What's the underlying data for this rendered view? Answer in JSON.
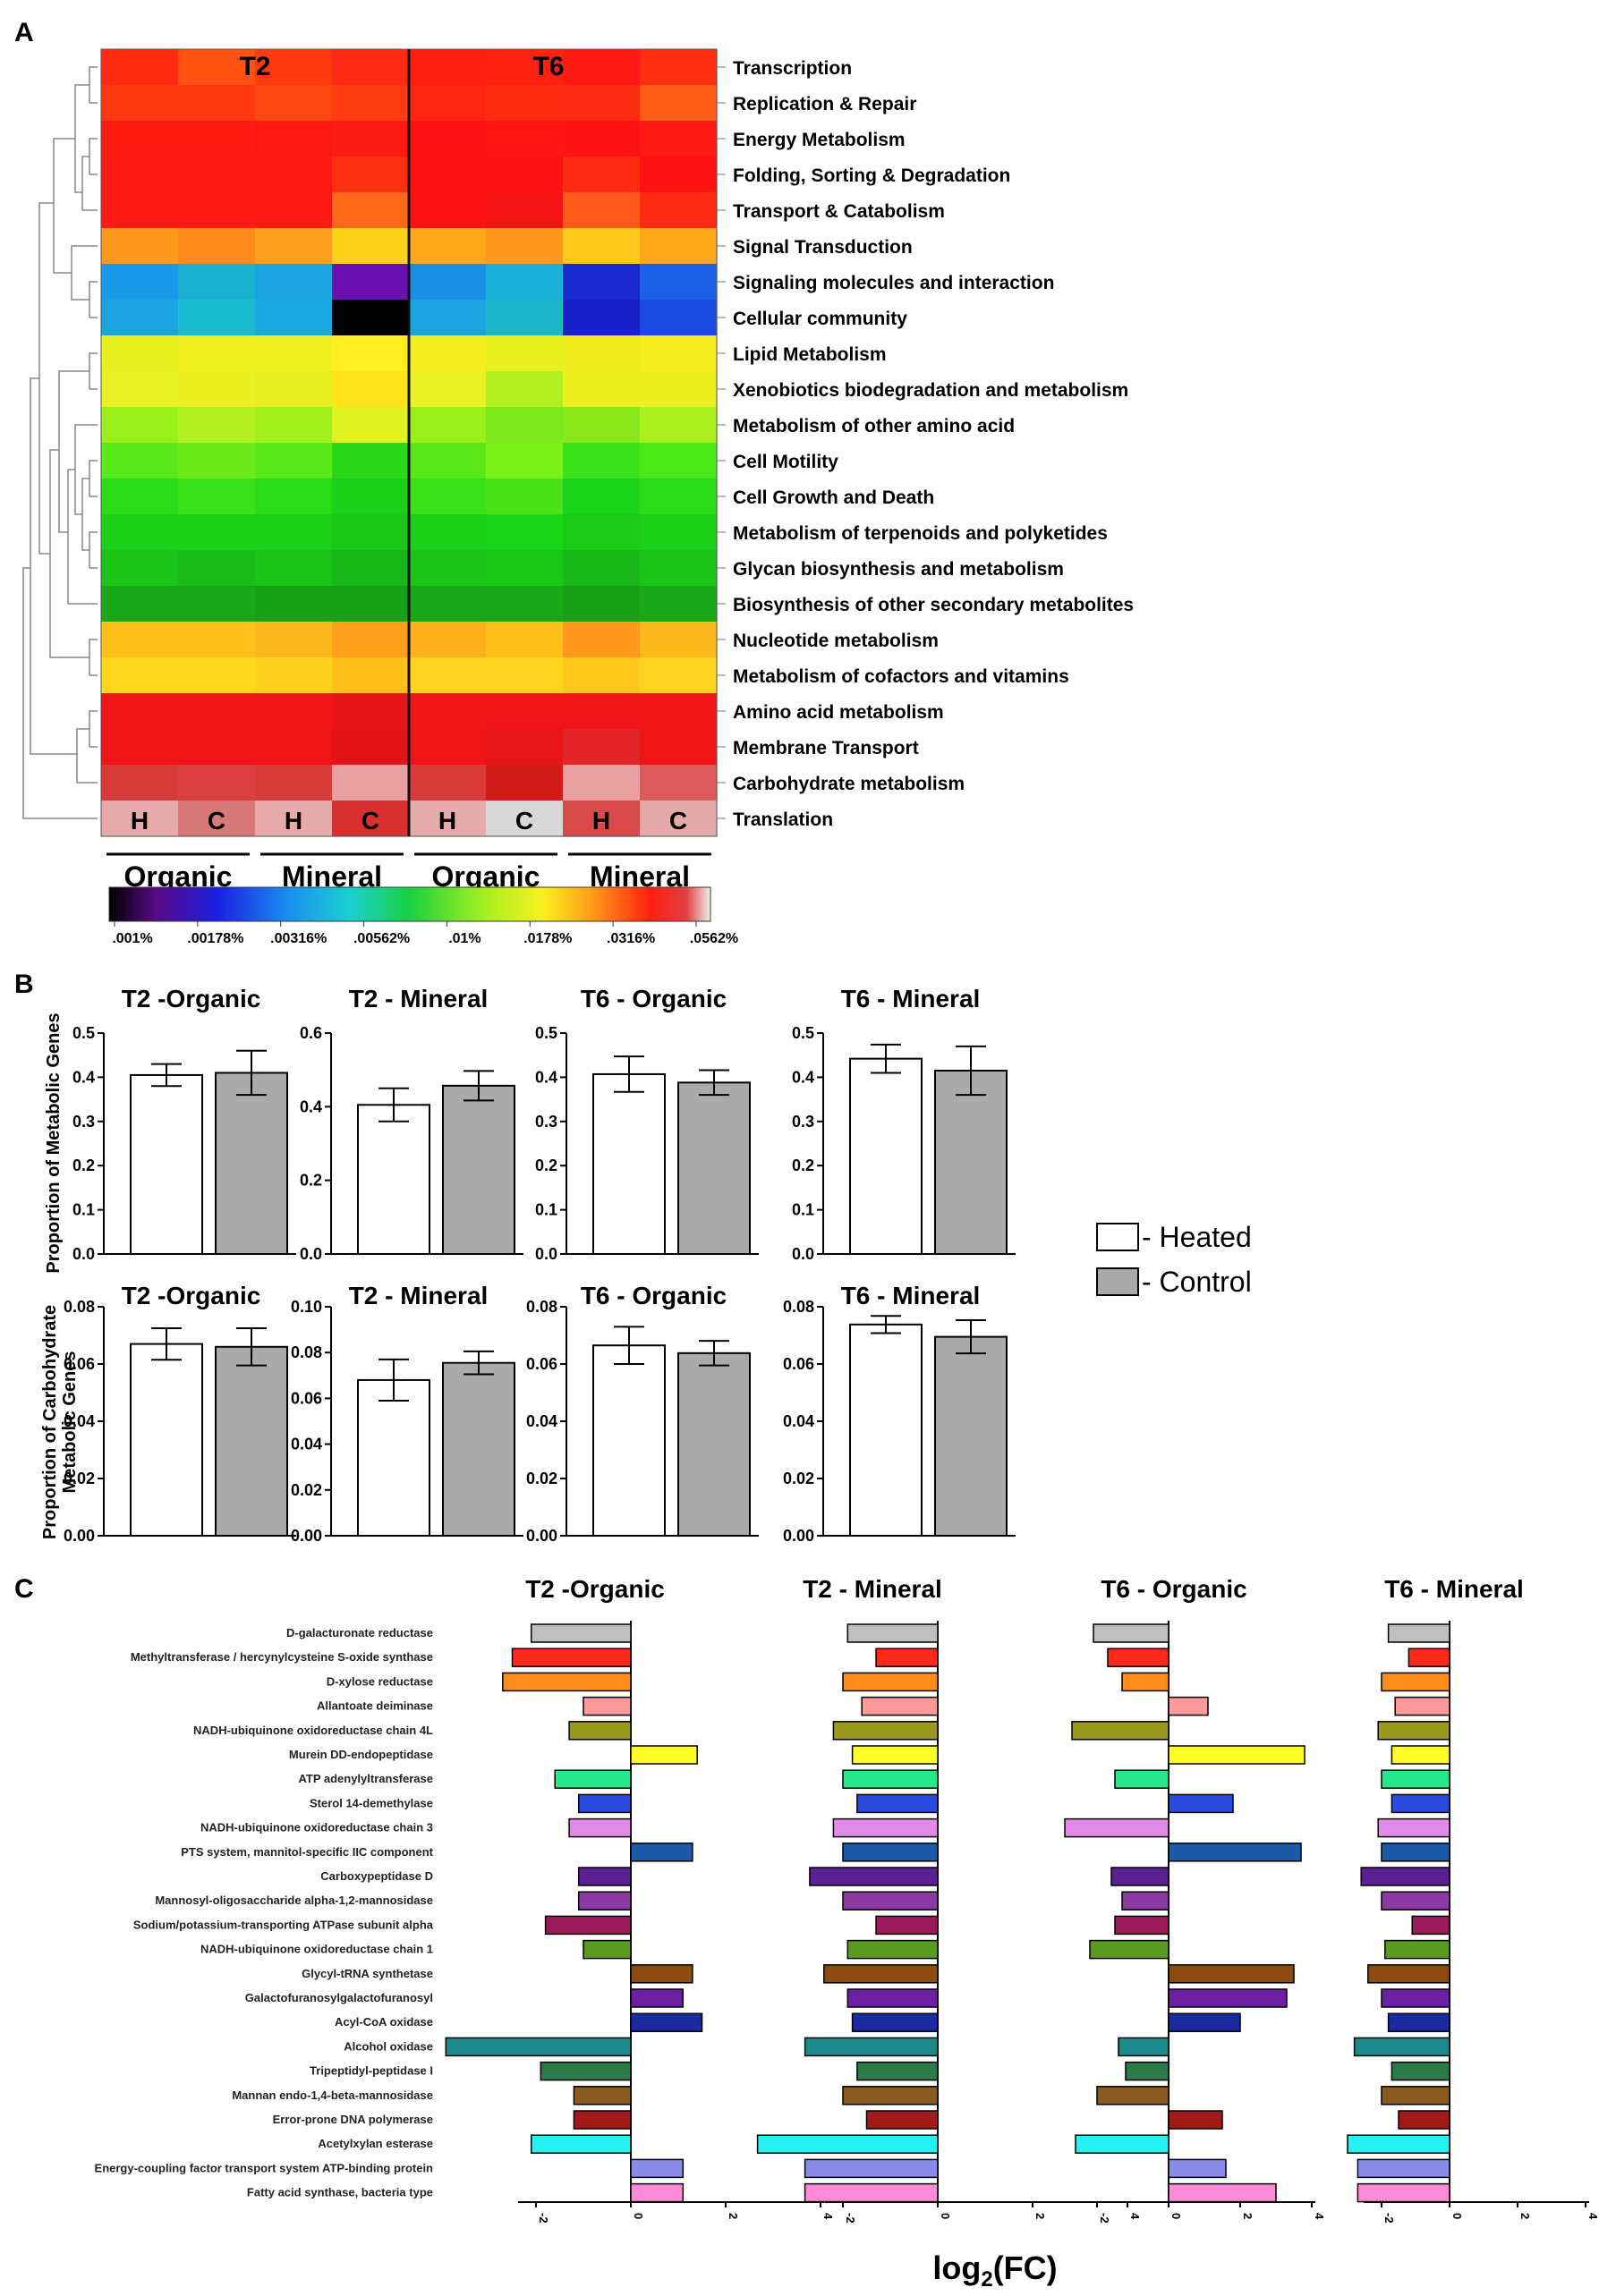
{
  "panels": {
    "a": "A",
    "b": "B",
    "c": "C"
  },
  "heatmap": {
    "time_labels": [
      "T2",
      "T6"
    ],
    "rows": [
      "Transcription",
      "Replication & Repair",
      "Energy Metabolism",
      "Folding, Sorting & Degradation",
      "Transport & Catabolism",
      "Signal Transduction",
      "Signaling molecules and interaction",
      "Cellular community",
      "Lipid Metabolism",
      "Xenobiotics biodegradation and metabolism",
      "Metabolism of other amino acid",
      "Cell Motility",
      "Cell Growth and Death",
      "Metabolism of terpenoids and polyketides",
      "Glycan biosynthesis and metabolism",
      "Biosynthesis of other secondary metabolites",
      "Nucleotide metabolism",
      "Metabolism of cofactors and vitamins",
      "Amino acid metabolism",
      "Membrane Transport",
      "Carbohydrate metabolism",
      "Translation"
    ],
    "column_labels": [
      "H",
      "C",
      "H",
      "C",
      "H",
      "C",
      "H",
      "C"
    ],
    "group_labels": [
      "Organic",
      "Mineral",
      "Organic",
      "Mineral"
    ],
    "colorbar_ticks": [
      ".001%",
      ".00178%",
      ".00316%",
      ".00562%",
      ".01%",
      ".0178%",
      ".0316%",
      ".0562%"
    ],
    "cell_colors": [
      [
        "#ff2a10",
        "#ff5212",
        "#ff3a10",
        "#ff2a14",
        "#ff1d14",
        "#ff2210",
        "#ff1a14",
        "#ff2e10"
      ],
      [
        "#ff3a10",
        "#ff3810",
        "#ff4812",
        "#ff3c12",
        "#ff2410",
        "#ff2c12",
        "#ff2a12",
        "#ff5c1a"
      ],
      [
        "#ff1a12",
        "#ff1a12",
        "#ff1812",
        "#ff1c14",
        "#ff1212",
        "#ff1612",
        "#ff1212",
        "#ff1a14"
      ],
      [
        "#ff1a14",
        "#ff1a14",
        "#ff1a14",
        "#ff3012",
        "#ff1212",
        "#ff1212",
        "#ff2a14",
        "#ff1212"
      ],
      [
        "#ff1a14",
        "#ff1a14",
        "#ff1a14",
        "#ff6a1a",
        "#ff1212",
        "#f21414",
        "#ff5a1a",
        "#ff2a14"
      ],
      [
        "#ff9a1c",
        "#ff8a1c",
        "#ffa01c",
        "#ffd21a",
        "#ffa81c",
        "#ff981c",
        "#ffc81c",
        "#ffa81c"
      ],
      [
        "#1a9ae8",
        "#1ab0d0",
        "#1aa4e0",
        "#6a10b0",
        "#1a90e8",
        "#1ab0d8",
        "#1a28d0",
        "#1a60e8"
      ],
      [
        "#1aa4e0",
        "#1abcd0",
        "#1aa8e0",
        "#000000",
        "#1aa4e0",
        "#1ab8c8",
        "#1a20c8",
        "#1a4ae0"
      ],
      [
        "#e8f020",
        "#f0f020",
        "#f0f020",
        "#ffee20",
        "#f4ee20",
        "#e8f020",
        "#f0ec20",
        "#f4ee20"
      ],
      [
        "#e8f224",
        "#ecf020",
        "#e8ee20",
        "#ffe41c",
        "#e8f224",
        "#b4f020",
        "#ecf020",
        "#ecf020"
      ],
      [
        "#9af01a",
        "#b4f020",
        "#a4f01c",
        "#e0f220",
        "#9af01a",
        "#7ae81a",
        "#8ae81a",
        "#aaf01c"
      ],
      [
        "#5ae818",
        "#6ae818",
        "#5ae818",
        "#2ad81a",
        "#5ae818",
        "#7af01a",
        "#3ae018",
        "#4ae818"
      ],
      [
        "#2adc18",
        "#3ae018",
        "#2adc18",
        "#1ad018",
        "#3ae018",
        "#4ae018",
        "#1ad41a",
        "#2adc18"
      ],
      [
        "#1ad018",
        "#1ad018",
        "#1ad018",
        "#1ac818",
        "#1ad018",
        "#1ad418",
        "#1acc18",
        "#1ad018"
      ],
      [
        "#1ac418",
        "#1abc18",
        "#1ac418",
        "#18b818",
        "#1ac418",
        "#1ac818",
        "#18b818",
        "#1ac418"
      ],
      [
        "#18a818",
        "#18a818",
        "#18a018",
        "#18a018",
        "#18a818",
        "#18a818",
        "#18a018",
        "#18a818"
      ],
      [
        "#ffc01c",
        "#ffc01c",
        "#ffb81c",
        "#ffa01c",
        "#ffb01c",
        "#ffc01c",
        "#ff9a1c",
        "#ffb81c"
      ],
      [
        "#ffd81e",
        "#ffd81e",
        "#ffd01e",
        "#ffc01c",
        "#ffd41e",
        "#ffd41e",
        "#ffc81c",
        "#ffd41e"
      ],
      [
        "#f01418",
        "#f01418",
        "#f01418",
        "#e41418",
        "#f01418",
        "#f01418",
        "#ee1418",
        "#f01418"
      ],
      [
        "#ee1418",
        "#ee1418",
        "#ee1418",
        "#e21418",
        "#ee1418",
        "#e81418",
        "#e42628",
        "#ee1418"
      ],
      [
        "#d83a3a",
        "#dc4040",
        "#d83a3a",
        "#e8a0a0",
        "#d83a3a",
        "#d21a1a",
        "#e8a0a0",
        "#dc5a5a"
      ],
      [
        "#e6aaaa",
        "#d87878",
        "#e6aaaa",
        "#d83030",
        "#e6aaaa",
        "#d8d8d8",
        "#d84a4a",
        "#e4aaaa"
      ]
    ]
  },
  "bar_legend": {
    "heated": "- Heated",
    "control": "- Control",
    "heated_color": "#ffffff",
    "control_color": "#aaaaaa"
  },
  "chart_data": [
    {
      "type": "bar",
      "title": "Proportion of Metabolic Genes (panel B, top row)",
      "ylabel": "Proportion of Metabolic Genes",
      "subplots": [
        {
          "title": "T2 -Organic",
          "ylim": [
            0,
            0.5
          ],
          "yticks": [
            "0.0",
            "0.1",
            "0.2",
            "0.3",
            "0.4",
            "0.5"
          ],
          "tick_values": [
            0,
            0.1,
            0.2,
            0.3,
            0.4,
            0.5
          ],
          "values": [
            0.405,
            0.41
          ],
          "errors": [
            0.025,
            0.05
          ]
        },
        {
          "title": "T2 - Mineral",
          "ylim": [
            0,
            0.6
          ],
          "yticks": [
            "0.0",
            "0.2",
            "0.4",
            "0.6"
          ],
          "tick_values": [
            0,
            0.2,
            0.4,
            0.6
          ],
          "values": [
            0.405,
            0.457
          ],
          "errors": [
            0.045,
            0.04
          ]
        },
        {
          "title": "T6 - Organic",
          "ylim": [
            0,
            0.5
          ],
          "yticks": [
            "0.0",
            "0.1",
            "0.2",
            "0.3",
            "0.4",
            "0.5"
          ],
          "tick_values": [
            0,
            0.1,
            0.2,
            0.3,
            0.4,
            0.5
          ],
          "values": [
            0.407,
            0.388
          ],
          "errors": [
            0.04,
            0.028
          ]
        },
        {
          "title": "T6 - Mineral",
          "ylim": [
            0,
            0.5
          ],
          "yticks": [
            "0.0",
            "0.1",
            "0.2",
            "0.3",
            "0.4",
            "0.5"
          ],
          "tick_values": [
            0,
            0.1,
            0.2,
            0.3,
            0.4,
            0.5
          ],
          "values": [
            0.442,
            0.415
          ],
          "errors": [
            0.032,
            0.055
          ]
        }
      ],
      "series": [
        "Heated",
        "Control"
      ]
    },
    {
      "type": "bar",
      "title": "Proportion of Carbohydrate Metabolic Genes (panel B, bottom row)",
      "ylabel_lines": [
        "Proportion of Carbohydrate",
        "Metabolic Genes"
      ],
      "subplots": [
        {
          "title": "T2 -Organic",
          "ylim": [
            0,
            0.08
          ],
          "yticks": [
            "0.00",
            "0.02",
            "0.04",
            "0.06",
            "0.08"
          ],
          "tick_values": [
            0,
            0.02,
            0.04,
            0.06,
            0.08
          ],
          "values": [
            0.067,
            0.066
          ],
          "errors": [
            0.0055,
            0.0065
          ]
        },
        {
          "title": "T2 - Mineral",
          "ylim": [
            0,
            0.1
          ],
          "yticks": [
            "0.00",
            "0.02",
            "0.04",
            "0.06",
            "0.08",
            "0.10"
          ],
          "tick_values": [
            0,
            0.02,
            0.04,
            0.06,
            0.08,
            0.1
          ],
          "values": [
            0.068,
            0.0755
          ],
          "errors": [
            0.009,
            0.005
          ]
        },
        {
          "title": "T6 - Organic",
          "ylim": [
            0,
            0.08
          ],
          "yticks": [
            "0.00",
            "0.02",
            "0.04",
            "0.06",
            "0.08"
          ],
          "tick_values": [
            0,
            0.02,
            0.04,
            0.06,
            0.08
          ],
          "values": [
            0.0665,
            0.0638
          ],
          "errors": [
            0.0065,
            0.0043
          ]
        },
        {
          "title": "T6 - Mineral",
          "ylim": [
            0,
            0.08
          ],
          "yticks": [
            "0.00",
            "0.02",
            "0.04",
            "0.06",
            "0.08"
          ],
          "tick_values": [
            0,
            0.02,
            0.04,
            0.06,
            0.08
          ],
          "values": [
            0.0738,
            0.0695
          ],
          "errors": [
            0.003,
            0.0058
          ]
        }
      ],
      "series": [
        "Heated",
        "Control"
      ]
    },
    {
      "type": "bar",
      "orientation": "horizontal",
      "title": "Log2 fold change of carbohydrate-active genes (panel C)",
      "xlabel_main": "log",
      "xlabel_sub": "2",
      "xlabel_rest": "(FC)",
      "xticks": [
        "-2",
        "0",
        "2",
        "4"
      ],
      "tick_values": [
        -2,
        0,
        2,
        4
      ],
      "genes": [
        "D-galacturonate reductase",
        "Methyltransferase / hercynylcysteine S-oxide synthase",
        "D-xylose reductase",
        "Allantoate deiminase",
        "NADH-ubiquinone oxidoreductase chain 4L",
        "Murein DD-endopeptidase",
        "ATP adenylyltransferase",
        "Sterol 14-demethylase",
        "NADH-ubiquinone oxidoreductase chain 3",
        "PTS system, mannitol-specific IIC component",
        "Carboxypeptidase D",
        "Mannosyl-oligosaccharide alpha-1,2-mannosidase",
        "Sodium/potassium-transporting ATPase subunit alpha",
        "NADH-ubiquinone oxidoreductase chain 1",
        "Glycyl-tRNA synthetase",
        "Galactofuranosylgalactofuranosyl",
        "Acyl-CoA oxidase",
        "Alcohol oxidase",
        "Tripeptidyl-peptidase I",
        "Mannan endo-1,4-beta-mannosidase",
        "Error-prone DNA polymerase",
        "Acetylxylan esterase",
        "Energy-coupling factor transport system ATP-binding protein",
        "Fatty acid synthase, bacteria type"
      ],
      "colors": [
        "#bfbfbf",
        "#ff2a1a",
        "#ff8c1a",
        "#ff9a9a",
        "#9a9a20",
        "#ffff26",
        "#26e88a",
        "#2a4ae0",
        "#e28ae8",
        "#1a5aa8",
        "#5a2090",
        "#8a3aa0",
        "#9a1a5a",
        "#5a9a20",
        "#8a4a10",
        "#6a20a0",
        "#1a2aa0",
        "#1a8a8a",
        "#2a7a4a",
        "#8a5a20",
        "#a01a1a",
        "#26f0f0",
        "#8a8ae8",
        "#ff8ad8"
      ],
      "series": [
        {
          "name": "T2 -Organic",
          "values": [
            -2.1,
            -2.5,
            -2.7,
            -1.0,
            -1.3,
            1.4,
            -1.6,
            -1.1,
            -1.3,
            1.3,
            -1.1,
            -1.1,
            -1.8,
            -1.0,
            1.3,
            1.1,
            1.5,
            -3.9,
            -1.9,
            -1.2,
            -1.2,
            -2.1,
            1.1,
            1.1
          ]
        },
        {
          "name": "T2 - Mineral",
          "values": [
            -1.9,
            -1.3,
            -2.0,
            -1.6,
            -2.2,
            -1.8,
            -2.0,
            -1.7,
            -2.2,
            -2.0,
            -2.7,
            -2.0,
            -1.3,
            -1.9,
            -2.4,
            -1.9,
            -1.8,
            -2.8,
            -1.7,
            -2.0,
            -1.5,
            -3.8,
            -2.8,
            -2.8
          ]
        },
        {
          "name": "T6 - Organic",
          "values": [
            -2.1,
            -1.7,
            -1.3,
            1.1,
            -2.7,
            3.8,
            -1.5,
            1.8,
            -2.9,
            3.7,
            -1.6,
            -1.3,
            -1.5,
            -2.2,
            3.5,
            3.3,
            2.0,
            -1.4,
            -1.2,
            -2.0,
            1.5,
            -2.6,
            1.6,
            3.0
          ]
        },
        {
          "name": "T6 - Mineral",
          "values": [
            -1.8,
            -1.2,
            -2.0,
            -1.6,
            -2.1,
            -1.7,
            -2.0,
            -1.7,
            -2.1,
            -2.0,
            -2.6,
            -2.0,
            -1.1,
            -1.9,
            -2.4,
            -2.0,
            -1.8,
            -2.8,
            -1.7,
            -2.0,
            -1.5,
            -3.0,
            -2.7,
            -2.7
          ]
        }
      ]
    }
  ]
}
